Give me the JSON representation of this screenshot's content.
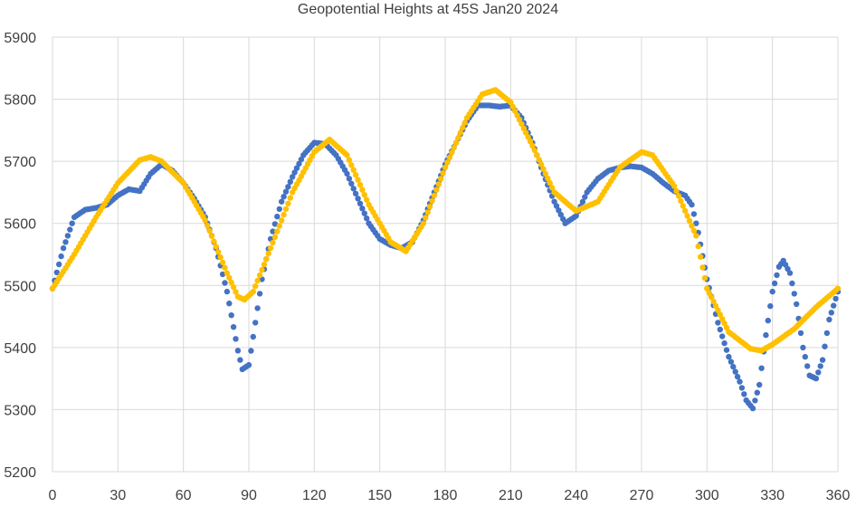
{
  "chart_data": {
    "type": "scatter",
    "title": "Geopotential Heights at 45S Jan20 2024",
    "xlabel": "",
    "ylabel": "",
    "xlim": [
      0,
      360
    ],
    "ylim": [
      5200,
      5900
    ],
    "x_ticks": [
      0,
      30,
      60,
      90,
      120,
      150,
      180,
      210,
      240,
      270,
      300,
      330,
      360
    ],
    "y_ticks": [
      5200,
      5300,
      5400,
      5500,
      5600,
      5700,
      5800,
      5900
    ],
    "grid": true,
    "legend": "none",
    "colors": {
      "series_1": "#4472C4",
      "series_2": "#FFC000",
      "grid": "#d9d9d9"
    },
    "series": [
      {
        "points": [
          [
            0,
            5495
          ],
          [
            5,
            5560
          ],
          [
            10,
            5610
          ],
          [
            15,
            5622
          ],
          [
            20,
            5625
          ],
          [
            25,
            5630
          ],
          [
            30,
            5645
          ],
          [
            35,
            5655
          ],
          [
            40,
            5652
          ],
          [
            45,
            5680
          ],
          [
            50,
            5695
          ],
          [
            55,
            5685
          ],
          [
            60,
            5665
          ],
          [
            65,
            5640
          ],
          [
            70,
            5610
          ],
          [
            75,
            5560
          ],
          [
            80,
            5490
          ],
          [
            85,
            5395
          ],
          [
            87,
            5365
          ],
          [
            90,
            5372
          ],
          [
            93,
            5440
          ],
          [
            96,
            5510
          ],
          [
            100,
            5575
          ],
          [
            105,
            5635
          ],
          [
            110,
            5675
          ],
          [
            115,
            5710
          ],
          [
            120,
            5730
          ],
          [
            125,
            5728
          ],
          [
            130,
            5710
          ],
          [
            135,
            5680
          ],
          [
            140,
            5640
          ],
          [
            145,
            5600
          ],
          [
            150,
            5575
          ],
          [
            155,
            5565
          ],
          [
            160,
            5560
          ],
          [
            165,
            5570
          ],
          [
            170,
            5605
          ],
          [
            175,
            5650
          ],
          [
            180,
            5695
          ],
          [
            185,
            5730
          ],
          [
            190,
            5765
          ],
          [
            195,
            5790
          ],
          [
            200,
            5790
          ],
          [
            205,
            5788
          ],
          [
            210,
            5790
          ],
          [
            215,
            5770
          ],
          [
            220,
            5730
          ],
          [
            225,
            5680
          ],
          [
            230,
            5635
          ],
          [
            235,
            5600
          ],
          [
            240,
            5612
          ],
          [
            245,
            5650
          ],
          [
            250,
            5672
          ],
          [
            255,
            5685
          ],
          [
            260,
            5690
          ],
          [
            265,
            5692
          ],
          [
            270,
            5690
          ],
          [
            275,
            5680
          ],
          [
            280,
            5665
          ],
          [
            285,
            5652
          ],
          [
            290,
            5645
          ],
          [
            293,
            5630
          ],
          [
            296,
            5585
          ],
          [
            300,
            5510
          ],
          [
            305,
            5440
          ],
          [
            310,
            5385
          ],
          [
            315,
            5345
          ],
          [
            318,
            5315
          ],
          [
            321,
            5302
          ],
          [
            324,
            5340
          ],
          [
            327,
            5420
          ],
          [
            330,
            5490
          ],
          [
            333,
            5530
          ],
          [
            335,
            5540
          ],
          [
            338,
            5520
          ],
          [
            341,
            5470
          ],
          [
            344,
            5400
          ],
          [
            347,
            5355
          ],
          [
            350,
            5350
          ],
          [
            353,
            5380
          ],
          [
            356,
            5445
          ],
          [
            360,
            5490
          ]
        ]
      },
      {
        "points": [
          [
            0,
            5495
          ],
          [
            10,
            5550
          ],
          [
            20,
            5610
          ],
          [
            30,
            5665
          ],
          [
            40,
            5702
          ],
          [
            45,
            5707
          ],
          [
            50,
            5700
          ],
          [
            60,
            5665
          ],
          [
            70,
            5605
          ],
          [
            80,
            5520
          ],
          [
            85,
            5482
          ],
          [
            88,
            5477
          ],
          [
            92,
            5490
          ],
          [
            100,
            5560
          ],
          [
            110,
            5650
          ],
          [
            120,
            5715
          ],
          [
            127,
            5735
          ],
          [
            135,
            5710
          ],
          [
            145,
            5630
          ],
          [
            155,
            5570
          ],
          [
            162,
            5555
          ],
          [
            170,
            5600
          ],
          [
            180,
            5690
          ],
          [
            190,
            5770
          ],
          [
            197,
            5808
          ],
          [
            203,
            5815
          ],
          [
            210,
            5795
          ],
          [
            220,
            5725
          ],
          [
            230,
            5650
          ],
          [
            240,
            5620
          ],
          [
            250,
            5635
          ],
          [
            260,
            5690
          ],
          [
            270,
            5715
          ],
          [
            275,
            5710
          ],
          [
            285,
            5660
          ],
          [
            295,
            5580
          ],
          [
            300,
            5495
          ],
          [
            310,
            5425
          ],
          [
            320,
            5398
          ],
          [
            325,
            5395
          ],
          [
            330,
            5405
          ],
          [
            340,
            5430
          ],
          [
            350,
            5465
          ],
          [
            360,
            5495
          ]
        ]
      }
    ]
  }
}
